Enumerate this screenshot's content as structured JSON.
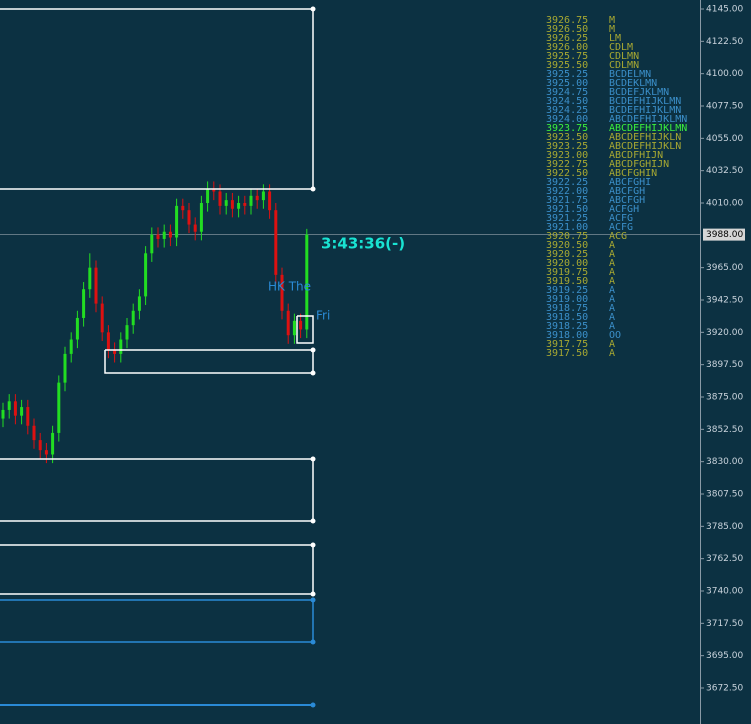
{
  "chart_data": {
    "type": "candlestick",
    "ylim": [
      3647.45,
      4151.26
    ],
    "yticks": [
      {
        "value": 4145,
        "label": "4145.00"
      },
      {
        "value": 4122.5,
        "label": "4122.50"
      },
      {
        "value": 4100,
        "label": "4100.00"
      },
      {
        "value": 4077.5,
        "label": "4077.50"
      },
      {
        "value": 4055,
        "label": "4055.00"
      },
      {
        "value": 4032.5,
        "label": "4032.50"
      },
      {
        "value": 4010,
        "label": "4010.00"
      },
      {
        "value": 3965,
        "label": "3965.00"
      },
      {
        "value": 3942.5,
        "label": "3942.50"
      },
      {
        "value": 3920,
        "label": "3920.00"
      },
      {
        "value": 3897.5,
        "label": "3897.50"
      },
      {
        "value": 3875,
        "label": "3875.00"
      },
      {
        "value": 3852.5,
        "label": "3852.50"
      },
      {
        "value": 3830,
        "label": "3830.00"
      },
      {
        "value": 3807.5,
        "label": "3807.50"
      },
      {
        "value": 3785,
        "label": "3785.00"
      },
      {
        "value": 3762.5,
        "label": "3762.50"
      },
      {
        "value": 3740,
        "label": "3740.00"
      },
      {
        "value": 3717.5,
        "label": "3717.50"
      },
      {
        "value": 3695,
        "label": "3695.00"
      },
      {
        "value": 3672.5,
        "label": "3672.50"
      }
    ],
    "last_price": {
      "value": 3988,
      "label": "3988.00"
    },
    "up_color": "#22dd22",
    "down_color": "#dd1111",
    "open": [
      3860,
      3866,
      3872,
      3862,
      3868,
      3855,
      3845,
      3838,
      3835,
      3850,
      3885,
      3905,
      3915,
      3930,
      3950,
      3965,
      3940,
      3920,
      3908,
      3905,
      3915,
      3925,
      3935,
      3945,
      3975,
      3988,
      3985,
      3990,
      3986,
      4008,
      4005,
      3995,
      3990,
      4010,
      4020,
      4018,
      4008,
      4012,
      4006,
      4010,
      4008,
      4015,
      4012,
      4018,
      4005,
      3960,
      3935,
      3918,
      3928,
      3922
    ],
    "high": [
      3871,
      3877,
      3877,
      3873,
      3873,
      3860,
      3850,
      3843,
      3855,
      3890,
      3910,
      3920,
      3935,
      3955,
      3975,
      3970,
      3945,
      3925,
      3913,
      3920,
      3930,
      3940,
      3950,
      3980,
      3993,
      3993,
      3995,
      3995,
      4013,
      4013,
      4010,
      4000,
      4015,
      4025,
      4025,
      4023,
      4017,
      4017,
      4015,
      4015,
      4020,
      4020,
      4023,
      4023,
      4010,
      3965,
      3940,
      3933,
      3933,
      3992
    ],
    "low": [
      3854,
      3860,
      3856,
      3856,
      3849,
      3839,
      3832,
      3829,
      3829,
      3844,
      3879,
      3899,
      3909,
      3924,
      3944,
      3934,
      3914,
      3902,
      3899,
      3899,
      3909,
      3919,
      3929,
      3939,
      3969,
      3979,
      3979,
      3980,
      3980,
      3999,
      3989,
      3984,
      3984,
      4004,
      4012,
      4002,
      4002,
      4000,
      4000,
      4002,
      4002,
      4006,
      4006,
      3999,
      3954,
      3929,
      3912,
      3912,
      3916,
      3916
    ],
    "close": [
      3866,
      3872,
      3862,
      3868,
      3855,
      3845,
      3838,
      3835,
      3850,
      3885,
      3905,
      3915,
      3930,
      3950,
      3965,
      3940,
      3920,
      3908,
      3905,
      3915,
      3925,
      3935,
      3945,
      3975,
      3988,
      3985,
      3990,
      3986,
      4008,
      4005,
      3995,
      3990,
      4010,
      4020,
      4018,
      4008,
      4012,
      4006,
      4010,
      4008,
      4015,
      4012,
      4018,
      4005,
      3960,
      3935,
      3918,
      3928,
      3922,
      3988
    ],
    "annotations": [
      "3:43:36(-)",
      "HK The",
      "Fri"
    ],
    "profile": {
      "prices": [
        "3926.75",
        "3926.50",
        "3926.25",
        "3926.00",
        "3925.75",
        "3925.50",
        "3925.25",
        "3925.00",
        "3924.75",
        "3924.50",
        "3924.25",
        "3924.00",
        "3923.75",
        "3923.50",
        "3923.25",
        "3923.00",
        "3922.75",
        "3922.50",
        "3922.25",
        "3922.00",
        "3921.75",
        "3921.50",
        "3921.25",
        "3921.00",
        "3920.75",
        "3920.50",
        "3920.25",
        "3920.00",
        "3919.75",
        "3919.50",
        "3919.25",
        "3919.00",
        "3918.75",
        "3918.50",
        "3918.25",
        "3918.00",
        "3917.75",
        "3917.50"
      ],
      "letters": [
        "M",
        "M",
        "LM",
        "CDLM",
        "CDLMN",
        "CDLMN",
        "BCDELMN",
        "BCDEKLMN",
        "BCDEFJKLMN",
        "BCDEFHIJKLMN",
        "BCDEFHIJKLMN",
        "ABCDEFHIJKLMN",
        "ABCDEFHIJKLMN",
        "ABCDEFHIJKLN",
        "ABCDEFHIJKLN",
        "ABCDFHIJN",
        "ABCDFGHIJN",
        "ABCFGHIN",
        "ABCFGHI",
        "ABCFGH",
        "ABCFGH",
        "ACFGH",
        "ACFG",
        "ACFG",
        "ACG",
        "A",
        "A",
        "A",
        "A",
        "A",
        "A",
        "A",
        "A",
        "A",
        "A",
        "OO",
        "A",
        "A"
      ]
    }
  }
}
